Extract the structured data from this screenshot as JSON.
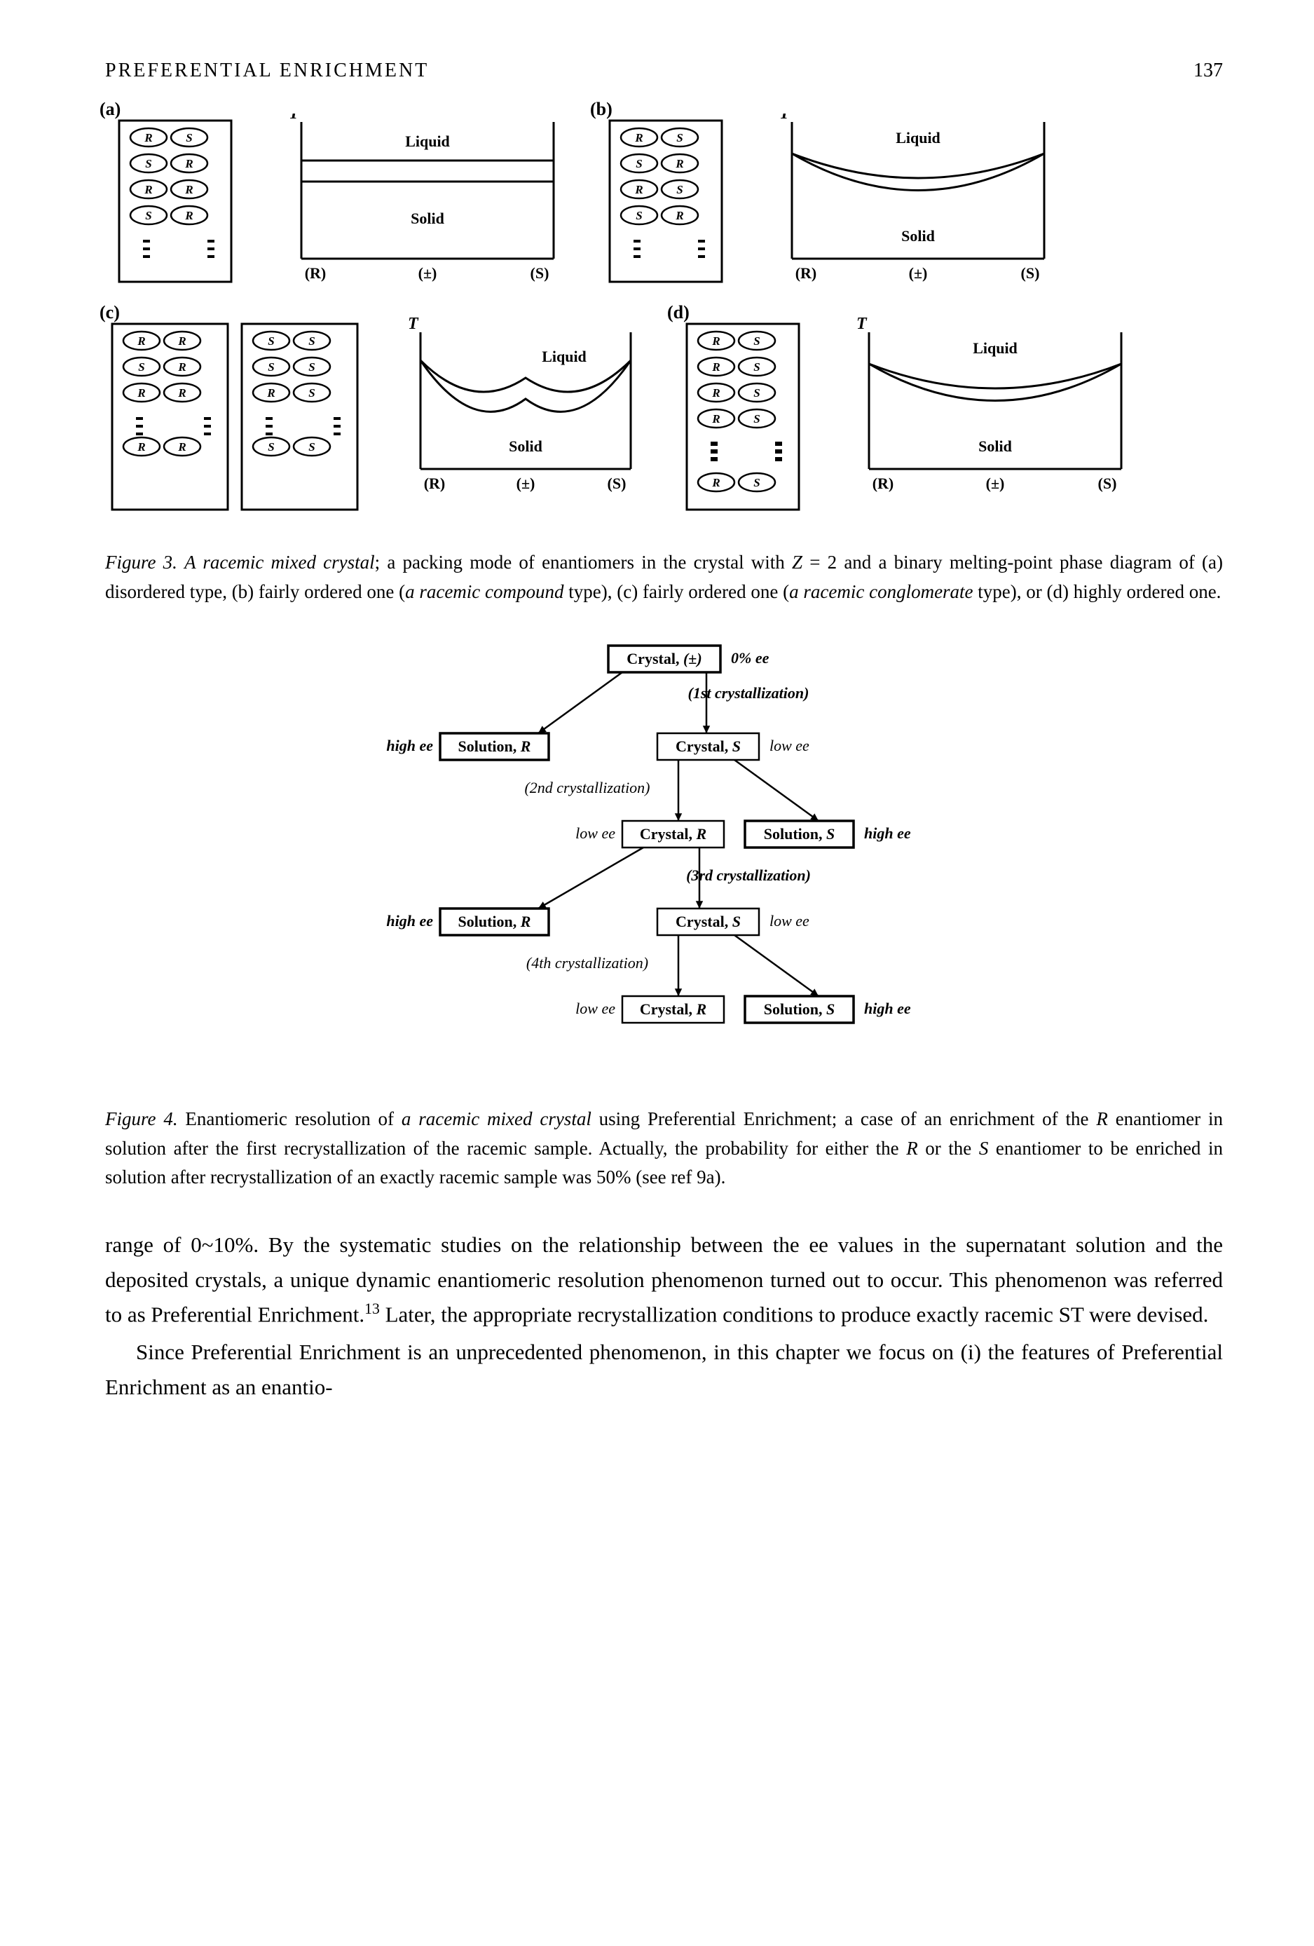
{
  "header": {
    "title": "PREFERENTIAL   ENRICHMENT",
    "page": "137"
  },
  "fig3": {
    "panels": [
      "(a)",
      "(b)",
      "(c)",
      "(d)"
    ],
    "axis_T": "T",
    "axis_R": "(R)",
    "axis_pm": "(±)",
    "axis_S": "(S)",
    "liquid": "Liquid",
    "solid": "Solid",
    "colors": {
      "frame": "#000000",
      "fill_none": "#ffffff"
    },
    "caption_html": "<span class='num'>Figure 3.</span> <i>A racemic mixed crystal</i>; a packing mode of enantiomers in the crystal with <i>Z</i> = 2 and a binary melting-point phase diagram of (a) disordered type, (b) fairly ordered one (<i>a racemic compound</i> type), (c) fairly ordered one (<i>a racemic conglomerate</i> type), or (d) highly ordered one."
  },
  "fig4": {
    "boxes": {
      "c_pm": "Crystal, (±)",
      "sol_R": "Solution, R",
      "cry_S": "Crystal, S",
      "cry_R": "Crystal, R",
      "sol_S": "Solution, S"
    },
    "labels": {
      "zero_ee": "0% ee",
      "high_ee": "high ee",
      "low_ee": "low ee",
      "first": "(1st crystallization)",
      "second": "(2nd crystallization)",
      "third": "(3rd crystallization)",
      "fourth": "(4th crystallization)"
    },
    "caption_html": "<span class='num'>Figure 4.</span> Enantiomeric resolution of <i>a racemic mixed crystal</i> using Preferential Enrichment; a case of an enrichment of the <i>R</i> enantiomer in solution after the first recrystallization of the racemic sample.   Actually, the probability for either the <i>R</i> or the <i>S</i> enantiomer to be enriched in solution after recrystallization of an exactly racemic sample was 50% (see ref 9a)."
  },
  "body": {
    "p1_html": "range of 0~10%.   By the systematic studies on the relationship between the ee values in the supernatant solution and the deposited crystals, a unique dynamic enantiomeric resolution phenomenon turned out to occur. This phenomenon was referred to as Preferential Enrichment.<sup>13</sup>   Later, the appropriate recrystalli­zation conditions to produce exactly racemic ST were devised.",
    "p2_html": "Since Preferential Enrichment is an unprecedented phenomenon, in this chapter we focus on (i) the features of Preferential Enrichment as an enantio-"
  }
}
